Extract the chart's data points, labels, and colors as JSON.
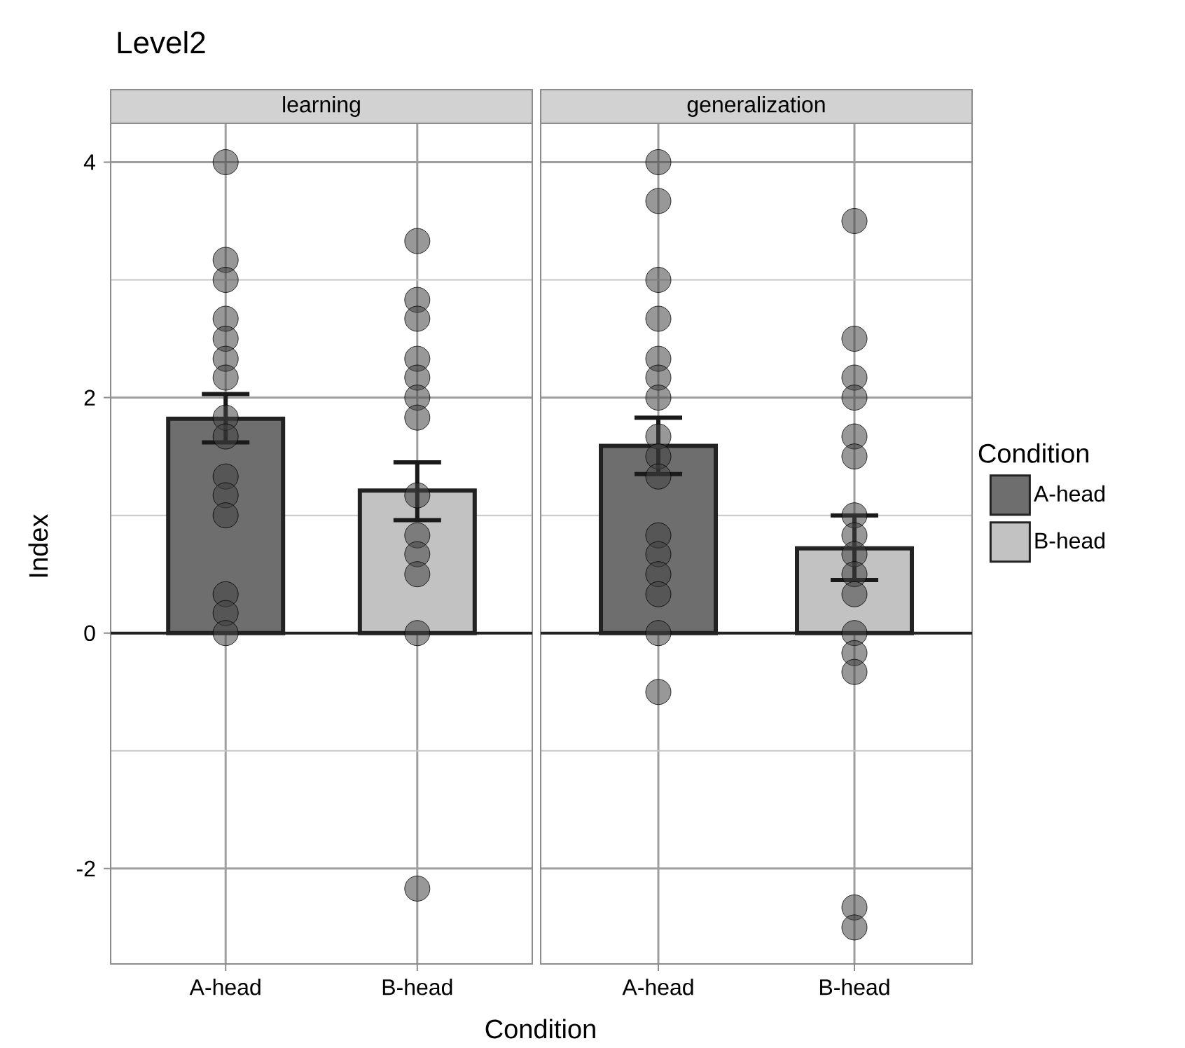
{
  "chart_data": [
    {
      "type": "bar",
      "title": "Level2",
      "subtitle": "learning",
      "xlabel": "Condition",
      "ylabel": "Index",
      "categories": [
        "A-head",
        "B-head"
      ],
      "ylim": [
        -2.81,
        4.33
      ],
      "yticks": [
        -2,
        0,
        2,
        4
      ],
      "grid": true,
      "ref_lines": [
        {
          "axis": "y",
          "value": 0,
          "color": "#222222"
        }
      ],
      "series": [
        {
          "type": "bar",
          "color": "#6e6e6e",
          "values": [
            1.82,
            null
          ],
          "errors": [
            [
              1.62,
              2.03
            ],
            null
          ]
        },
        {
          "type": "bar",
          "color": "#c2c2c2",
          "values": [
            null,
            1.21
          ],
          "errors": [
            null,
            [
              0.96,
              1.45
            ]
          ]
        },
        {
          "type": "scatter",
          "marker": "circle",
          "color": "#444444",
          "x": [
            "A-head",
            "A-head",
            "A-head",
            "A-head",
            "A-head",
            "A-head",
            "A-head",
            "A-head",
            "A-head",
            "A-head",
            "A-head",
            "A-head",
            "A-head",
            "A-head",
            "A-head",
            "B-head",
            "B-head",
            "B-head",
            "B-head",
            "B-head",
            "B-head",
            "B-head",
            "B-head",
            "B-head",
            "B-head",
            "B-head",
            "B-head",
            "B-head"
          ],
          "values": [
            4.0,
            3.17,
            3.0,
            2.67,
            2.5,
            2.33,
            2.17,
            1.83,
            1.67,
            1.33,
            1.17,
            1.0,
            0.33,
            0.17,
            0,
            3.33,
            2.83,
            2.67,
            2.33,
            2.17,
            2.0,
            1.83,
            1.17,
            0.83,
            0.67,
            0.5,
            0,
            -2.17
          ]
        }
      ]
    },
    {
      "type": "bar",
      "subtitle": "generalization",
      "categories": [
        "A-head",
        "B-head"
      ],
      "ylim": [
        -2.81,
        4.33
      ],
      "yticks": [
        -2,
        0,
        2,
        4
      ],
      "grid": true,
      "tick_labels": "x",
      "legend": "right",
      "legend_title": "Condition",
      "ref_lines": [
        {
          "axis": "y",
          "value": 0,
          "color": "#222222"
        }
      ],
      "series": [
        {
          "type": "bar",
          "name": "A-head",
          "color": "#6e6e6e",
          "values": [
            1.59,
            null
          ],
          "errors": [
            [
              1.35,
              1.83
            ],
            null
          ]
        },
        {
          "type": "bar",
          "name": "B-head",
          "color": "#c2c2c2",
          "values": [
            null,
            0.72
          ],
          "errors": [
            null,
            [
              0.45,
              1.0
            ]
          ]
        },
        {
          "type": "scatter",
          "marker": "circle",
          "color": "#444444",
          "x": [
            "A-head",
            "A-head",
            "A-head",
            "A-head",
            "A-head",
            "A-head",
            "A-head",
            "A-head",
            "A-head",
            "A-head",
            "A-head",
            "A-head",
            "A-head",
            "A-head",
            "A-head",
            "A-head",
            "B-head",
            "B-head",
            "B-head",
            "B-head",
            "B-head",
            "B-head",
            "B-head",
            "B-head",
            "B-head",
            "B-head",
            "B-head",
            "B-head",
            "B-head",
            "B-head",
            "B-head",
            "B-head"
          ],
          "values": [
            4.0,
            3.67,
            3.0,
            2.67,
            2.33,
            2.17,
            2.0,
            1.67,
            1.5,
            1.33,
            0.83,
            0.67,
            0.5,
            0.33,
            0,
            -0.5,
            3.5,
            2.5,
            2.17,
            2.0,
            1.67,
            1.5,
            1.0,
            0.83,
            0.67,
            0.5,
            0.33,
            0,
            -0.17,
            -0.33,
            -2.33,
            -2.5
          ]
        }
      ]
    }
  ]
}
